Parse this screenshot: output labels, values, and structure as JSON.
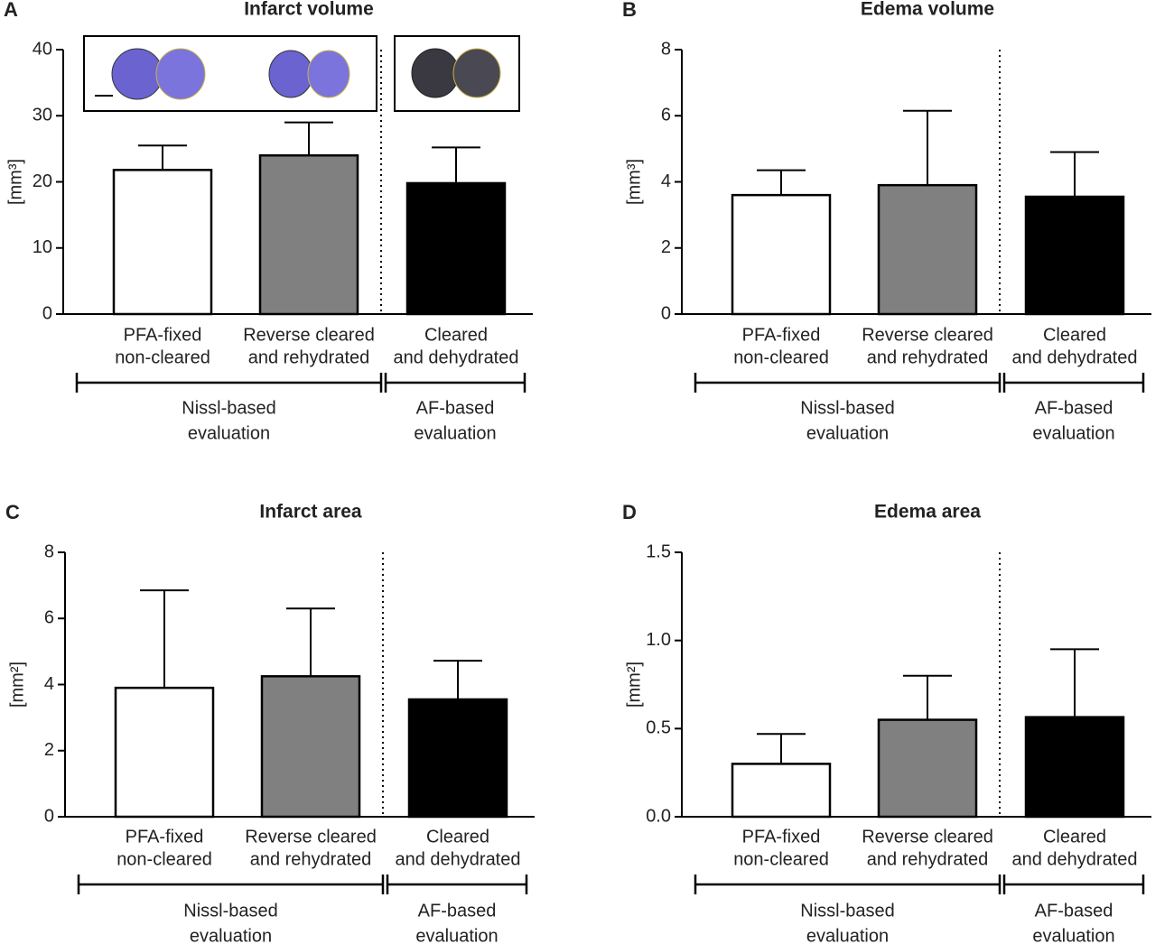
{
  "chart_data": [
    {
      "type": "bar",
      "panel": "A",
      "title": "Infarct volume",
      "y_label": "[mm³]",
      "categories": [
        [
          "PFA-fixed",
          "non-cleared"
        ],
        [
          "Reverse cleared",
          "and rehydrated"
        ],
        [
          "Cleared",
          "and dehydrated"
        ]
      ],
      "groups": [
        [
          "Nissl-based",
          "evaluation"
        ],
        [
          "AF-based",
          "evaluation"
        ]
      ],
      "values": [
        21.8,
        24.0,
        19.8
      ],
      "errors": [
        3.7,
        5.0,
        5.4
      ],
      "colors": [
        "#ffffff",
        "#808080",
        "#000000"
      ],
      "ylim": [
        0,
        40
      ],
      "yticks": [
        0,
        10,
        20,
        30,
        40
      ]
    },
    {
      "type": "bar",
      "panel": "B",
      "title": "Edema volume",
      "y_label": "[mm³]",
      "categories": [
        [
          "PFA-fixed",
          "non-cleared"
        ],
        [
          "Reverse cleared",
          "and rehydrated"
        ],
        [
          "Cleared",
          "and dehydrated"
        ]
      ],
      "groups": [
        [
          "Nissl-based",
          "evaluation"
        ],
        [
          "AF-based",
          "evaluation"
        ]
      ],
      "values": [
        3.6,
        3.9,
        3.55
      ],
      "errors": [
        0.75,
        2.25,
        1.35
      ],
      "colors": [
        "#ffffff",
        "#808080",
        "#000000"
      ],
      "ylim": [
        0,
        8
      ],
      "yticks": [
        0,
        2,
        4,
        6,
        8
      ]
    },
    {
      "type": "bar",
      "panel": "C",
      "title": "Infarct area",
      "y_label": "[mm²]",
      "categories": [
        [
          "PFA-fixed",
          "non-cleared"
        ],
        [
          "Reverse cleared",
          "and rehydrated"
        ],
        [
          "Cleared",
          "and dehydrated"
        ]
      ],
      "groups": [
        [
          "Nissl-based",
          "evaluation"
        ],
        [
          "AF-based",
          "evaluation"
        ]
      ],
      "values": [
        3.9,
        4.25,
        3.55
      ],
      "errors": [
        2.95,
        2.05,
        1.17
      ],
      "colors": [
        "#ffffff",
        "#808080",
        "#000000"
      ],
      "ylim": [
        0,
        8
      ],
      "yticks": [
        0,
        2,
        4,
        6,
        8
      ]
    },
    {
      "type": "bar",
      "panel": "D",
      "title": "Edema area",
      "y_label": "[mm²]",
      "categories": [
        [
          "PFA-fixed",
          "non-cleared"
        ],
        [
          "Reverse cleared",
          "and rehydrated"
        ],
        [
          "Cleared",
          "and dehydrated"
        ]
      ],
      "groups": [
        [
          "Nissl-based",
          "evaluation"
        ],
        [
          "AF-based",
          "evaluation"
        ]
      ],
      "values": [
        0.3,
        0.55,
        0.565
      ],
      "errors": [
        0.17,
        0.25,
        0.385
      ],
      "colors": [
        "#ffffff",
        "#808080",
        "#000000"
      ],
      "ylim": [
        0,
        1.5
      ],
      "yticks": [
        {
          "value": 0,
          "label": "0.0"
        },
        0.5,
        {
          "value": 1,
          "label": "1.0"
        },
        1.5
      ]
    }
  ]
}
